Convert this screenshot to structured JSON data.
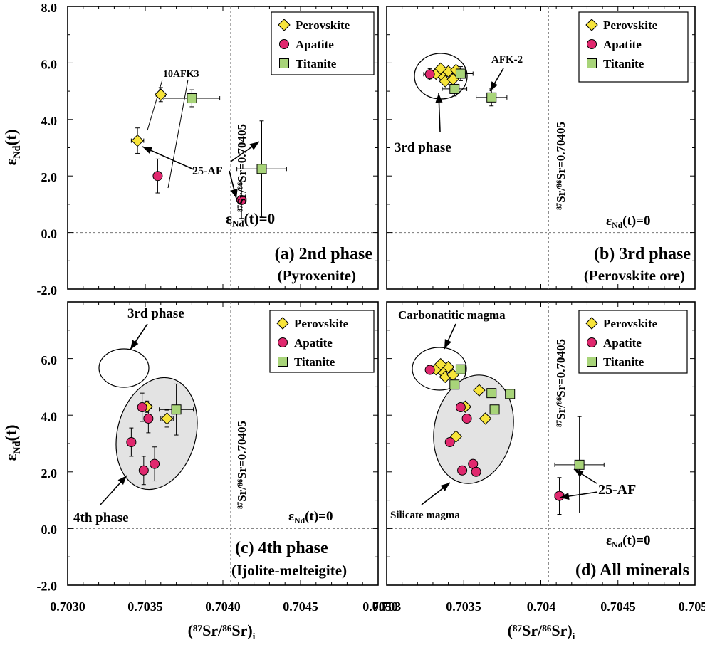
{
  "colors": {
    "perovskite": "#f7e43a",
    "apatite": "#e0286e",
    "apatite_dark": "#d9232a",
    "titanite": "#a8d479",
    "field_fill": "#e3e3e3",
    "refline": "#777777"
  },
  "axes": {
    "ylabel_main": "ε",
    "ylabel_sub": "Nd",
    "ylabel_tail": "(t)",
    "xlabel_left": "(⁸⁷Sr/⁸⁶Sr)",
    "xlabel_left_sub": "i",
    "xlabel_right": "(⁸⁷Sr/⁸⁶Sr)",
    "xlabel_right_sub": "i",
    "yticks": [
      "8.0",
      "6.0",
      "4.0",
      "2.0",
      "0.0",
      "-2.0"
    ],
    "yticks_lower": [
      "6.0",
      "4.0",
      "2.0",
      "0.0",
      "-2.0"
    ],
    "xticks_left": [
      "0.7030",
      "0.7035",
      "0.7040",
      "0.7045"
    ],
    "xticks_right": [
      "0.703",
      "0.7035",
      "0.704",
      "0.7045",
      "0.705"
    ],
    "xtick_shared": "0.7050",
    "sr_ref_text": "⁸⁷Sr/⁸⁶Sr=0.70405",
    "eps_ref_main": "ε",
    "eps_ref_sub": "Nd",
    "eps_ref_tail": "(t)=0"
  },
  "legend": {
    "perovskite": "Perovskite",
    "apatite": "Apatite",
    "titanite": "Titanite"
  },
  "panels": {
    "a": {
      "title1": "(a) 2nd phase",
      "title2": "(Pyroxenite)",
      "ann_10afk3": "10AFK3",
      "ann_25af": "25-AF"
    },
    "b": {
      "title1": "(b) 3rd phase",
      "title2": "(Perovskite ore)",
      "ann_afk2": "AFK-2",
      "ann_3rd": "3rd phase"
    },
    "c": {
      "title1": "(c) 4th phase",
      "title2": "(Ijolite-melteigite)",
      "ann_3rd": "3rd phase",
      "ann_4th": "4th phase"
    },
    "d": {
      "title1": "(d) All minerals",
      "ann_carb": "Carbonatitic magma",
      "ann_sil": "Silicate magma",
      "ann_25af": "25-AF"
    }
  },
  "chart_data": [
    {
      "type": "scatter",
      "panel": "a",
      "title": "(a) 2nd phase (Pyroxenite)",
      "xlim": [
        0.703,
        0.705
      ],
      "ylim": [
        -2,
        8
      ],
      "xlabel": "(87Sr/86Sr)i",
      "ylabel": "εNd(t)",
      "reference_lines": {
        "x": 0.70405,
        "y": 0
      },
      "series": [
        {
          "name": "Perovskite",
          "points": [
            {
              "x": 0.7036,
              "y": 4.88,
              "xerr": 3e-05,
              "yerr": 0.25
            },
            {
              "x": 0.70345,
              "y": 3.25,
              "xerr": 4e-05,
              "yerr": 0.45
            }
          ]
        },
        {
          "name": "Apatite",
          "points": [
            {
              "x": 0.70358,
              "y": 2.0,
              "xerr": 2e-05,
              "yerr": 0.6
            },
            {
              "x": 0.70412,
              "y": 1.15,
              "xerr": 3e-05,
              "yerr": 0.65
            }
          ]
        },
        {
          "name": "Titanite",
          "points": [
            {
              "x": 0.7038,
              "y": 4.75,
              "xerr": 0.00018,
              "yerr": 0.3
            },
            {
              "x": 0.70425,
              "y": 2.25,
              "xerr": 0.00016,
              "yerr": 1.7
            }
          ]
        }
      ]
    },
    {
      "type": "scatter",
      "panel": "b",
      "title": "(b) 3rd phase (Perovskite ore)",
      "xlim": [
        0.703,
        0.705
      ],
      "ylim": [
        -2,
        8
      ],
      "reference_lines": {
        "x": 0.70405,
        "y": 0
      },
      "series": [
        {
          "name": "Perovskite",
          "points": [
            {
              "x": 0.70336,
              "y": 5.55
            },
            {
              "x": 0.70338,
              "y": 5.35
            },
            {
              "x": 0.7034,
              "y": 5.7
            },
            {
              "x": 0.70332,
              "y": 5.62
            },
            {
              "x": 0.70343,
              "y": 5.42
            },
            {
              "x": 0.70345,
              "y": 5.75
            },
            {
              "x": 0.70335,
              "y": 5.8
            }
          ]
        },
        {
          "name": "Apatite",
          "points": [
            {
              "x": 0.70328,
              "y": 5.6,
              "xerr": 4e-05,
              "yerr": 0.2
            }
          ]
        },
        {
          "name": "Titanite",
          "points": [
            {
              "x": 0.70348,
              "y": 5.62,
              "xerr": 8e-05,
              "yerr": 0.25
            },
            {
              "x": 0.70344,
              "y": 5.08,
              "xerr": 8e-05,
              "yerr": 0.25
            },
            {
              "x": 0.70368,
              "y": 4.78,
              "xerr": 0.0001,
              "yerr": 0.3
            }
          ]
        }
      ]
    },
    {
      "type": "scatter",
      "panel": "c",
      "title": "(c) 4th phase (Ijolite-melteigite)",
      "xlim": [
        0.703,
        0.705
      ],
      "ylim": [
        -2,
        8
      ],
      "reference_lines": {
        "x": 0.70405,
        "y": 0
      },
      "series": [
        {
          "name": "Perovskite",
          "points": [
            {
              "x": 0.70351,
              "y": 4.3,
              "xerr": 3e-05,
              "yerr": 0.2
            },
            {
              "x": 0.70364,
              "y": 3.88,
              "xerr": 4e-05,
              "yerr": 0.3
            }
          ]
        },
        {
          "name": "Apatite",
          "points": [
            {
              "x": 0.70348,
              "y": 4.28,
              "xerr": 2e-05,
              "yerr": 0.5
            },
            {
              "x": 0.70352,
              "y": 3.88,
              "xerr": 2e-05,
              "yerr": 0.5
            },
            {
              "x": 0.70341,
              "y": 3.05,
              "xerr": 2e-05,
              "yerr": 0.5
            },
            {
              "x": 0.70349,
              "y": 2.05,
              "xerr": 2e-05,
              "yerr": 0.5
            },
            {
              "x": 0.70356,
              "y": 2.28,
              "xerr": 2e-05,
              "yerr": 0.6
            }
          ]
        },
        {
          "name": "Titanite",
          "points": [
            {
              "x": 0.7037,
              "y": 4.2,
              "xerr": 0.00011,
              "yerr": 0.9
            }
          ]
        }
      ]
    },
    {
      "type": "scatter",
      "panel": "d",
      "title": "(d) All minerals",
      "xlim": [
        0.703,
        0.705
      ],
      "ylim": [
        -2,
        8
      ],
      "reference_lines": {
        "x": 0.70405,
        "y": 0
      },
      "series": [
        {
          "name": "Perovskite",
          "points": [
            {
              "x": 0.70336,
              "y": 5.55
            },
            {
              "x": 0.70338,
              "y": 5.35
            },
            {
              "x": 0.7034,
              "y": 5.7
            },
            {
              "x": 0.70332,
              "y": 5.62
            },
            {
              "x": 0.70343,
              "y": 5.42
            },
            {
              "x": 0.70335,
              "y": 5.8
            },
            {
              "x": 0.7036,
              "y": 4.88
            },
            {
              "x": 0.70351,
              "y": 4.3
            },
            {
              "x": 0.70364,
              "y": 3.88
            },
            {
              "x": 0.70345,
              "y": 3.25
            }
          ]
        },
        {
          "name": "Apatite",
          "points": [
            {
              "x": 0.70328,
              "y": 5.6
            },
            {
              "x": 0.70348,
              "y": 4.28
            },
            {
              "x": 0.70352,
              "y": 3.88
            },
            {
              "x": 0.70341,
              "y": 3.05
            },
            {
              "x": 0.70349,
              "y": 2.05
            },
            {
              "x": 0.70356,
              "y": 2.28
            },
            {
              "x": 0.70358,
              "y": 2.0
            },
            {
              "x": 0.70412,
              "y": 1.15,
              "xerr": 3e-05,
              "yerr": 0.65
            }
          ]
        },
        {
          "name": "Titanite",
          "points": [
            {
              "x": 0.70348,
              "y": 5.62
            },
            {
              "x": 0.70344,
              "y": 5.08
            },
            {
              "x": 0.70368,
              "y": 4.78
            },
            {
              "x": 0.7038,
              "y": 4.75
            },
            {
              "x": 0.7037,
              "y": 4.2
            },
            {
              "x": 0.70425,
              "y": 2.25,
              "xerr": 0.00016,
              "yerr": 1.7
            }
          ]
        }
      ]
    }
  ]
}
